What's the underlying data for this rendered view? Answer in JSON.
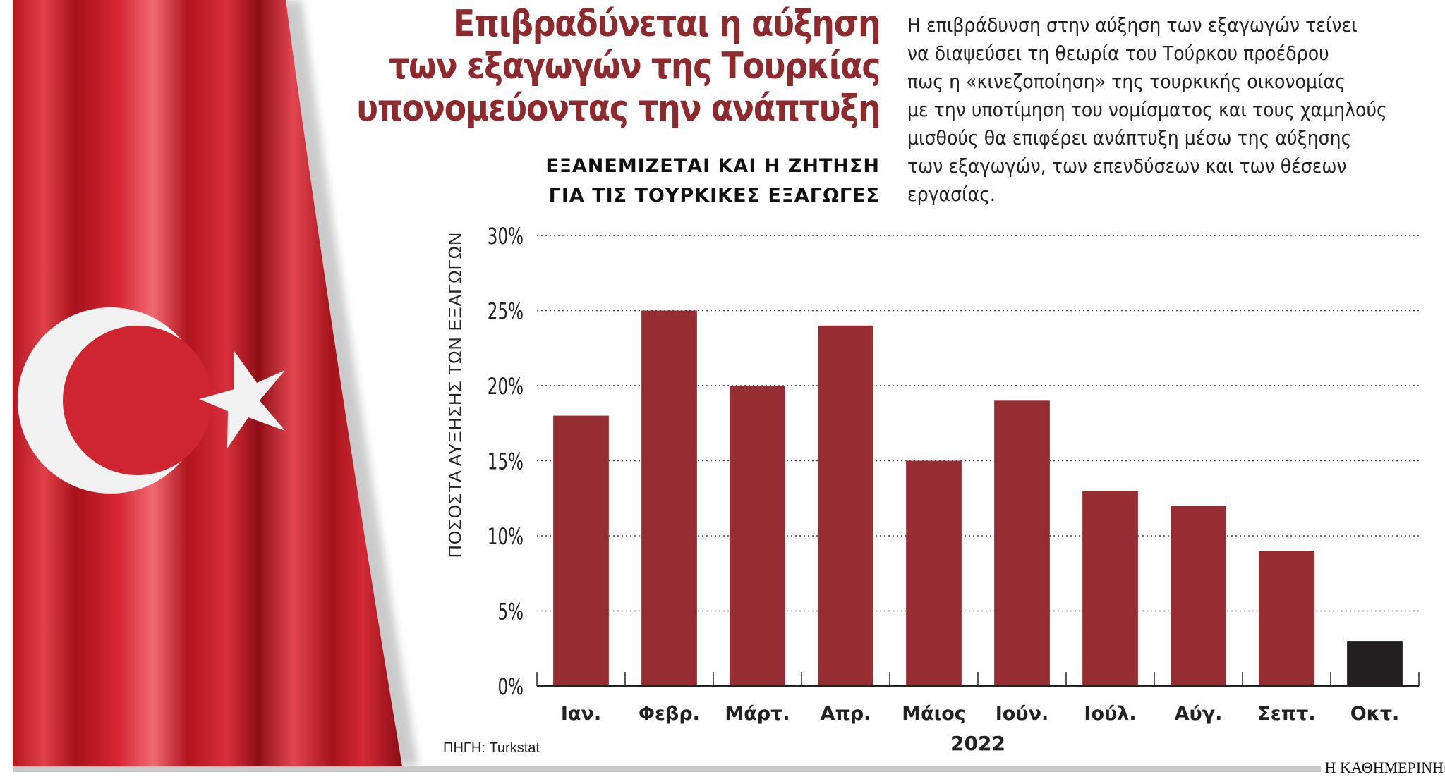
{
  "headline": [
    "Επιβραδύνεται η αύξηση",
    "των εξαγωγών της Τουρκίας",
    "υπονομεύοντας την ανάπτυξη"
  ],
  "subhead": [
    "ΕΞΑΝΕΜΙΖΕΤΑΙ ΚΑΙ Η ΖΗΤΗΣΗ",
    "ΓΙΑ ΤΙΣ ΤΟΥΡΚΙΚΕΣ ΕΞΑΓΩΓΕΣ"
  ],
  "lede": [
    "Η επιβράδυνση στην αύξηση των εξαγωγών τείνει",
    "να διαψεύσει τη θεωρία του Τούρκου προέδρου",
    "πως η «κινεζοποίηση» της τουρκικής οικονομίας",
    "με την υποτίμηση του νομίσματος και τους χαμηλούς",
    "μισθούς θα επιφέρει ανάπτυξη μέσω της αύξησης",
    "των εξαγωγών, των επενδύσεων και των θέσεων",
    "εργασίας."
  ],
  "source": "ΠΗΓΗ: Turkstat",
  "brand": "Η ΚΑΘΗΜΕΡΙΝΗ",
  "colors": {
    "bar": "#962d33",
    "highlight": "#231f20",
    "title": "#8e2a2e",
    "flag": "#d0202c"
  },
  "chart_data": {
    "type": "bar",
    "categories": [
      "Ιαν.",
      "Φεβρ.",
      "Μάρτ.",
      "Απρ.",
      "Μάιος",
      "Ιούν.",
      "Ιούλ.",
      "Αύγ.",
      "Σεπτ.",
      "Οκτ."
    ],
    "values": [
      18,
      25,
      20,
      24,
      15,
      19,
      13,
      12,
      9,
      3
    ],
    "highlighted": [
      "Οκτ."
    ],
    "xlabel": "2022",
    "ylabel": "ΠΟΣΟΣΤΑ ΑΥΞΗΣΗΣ ΤΩΝ ΕΞΑΓΩΓΩΝ",
    "ylim": [
      0,
      30
    ],
    "yticks": [
      "0%",
      "5%",
      "10%",
      "15%",
      "20%",
      "25%",
      "30%"
    ],
    "grid": "horizontal dotted"
  }
}
